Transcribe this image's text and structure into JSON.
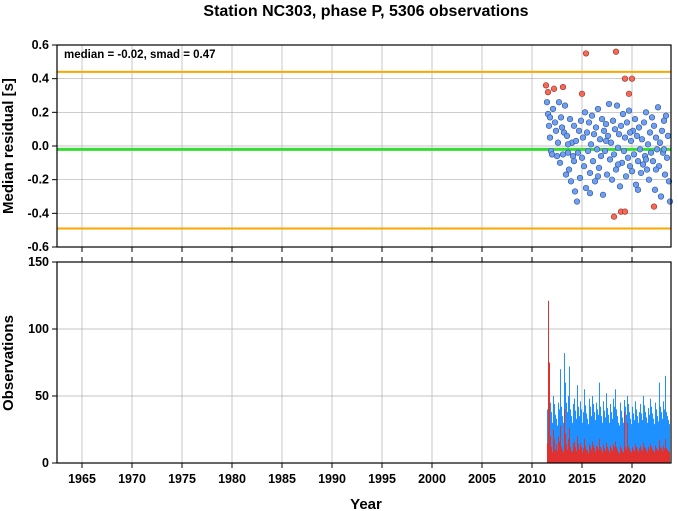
{
  "chart_data": [
    {
      "type": "scatter",
      "title": "Station NC303, phase P, 5306 observations",
      "ylabel": "Median residual [s]",
      "xlim": [
        1962.5,
        2023.9
      ],
      "ylim": [
        -0.6,
        0.6
      ],
      "yticks": [
        -0.6,
        -0.4,
        -0.2,
        0.0,
        0.2,
        0.4,
        0.6
      ],
      "ytick_labels": [
        "-0.6",
        "-0.4",
        "-0.2",
        "0.0",
        "0.2",
        "0.4",
        "0.6"
      ],
      "grid": true,
      "annotation": "median = -0.02, smad = 0.47",
      "median_line": {
        "value": -0.02,
        "color": "#33dd33"
      },
      "bounds_lines": {
        "values": [
          0.44,
          -0.49
        ],
        "color": "#ffa500"
      },
      "colors": {
        "inlier": "#6f9ff0",
        "outlier": "#f46a5a"
      },
      "outlier_points": [
        [
          2011.4,
          0.36
        ],
        [
          2011.6,
          0.32
        ],
        [
          2012.2,
          0.34
        ],
        [
          2013.1,
          0.35
        ],
        [
          2015.0,
          0.31
        ],
        [
          2015.4,
          0.55
        ],
        [
          2018.4,
          0.56
        ],
        [
          2019.3,
          0.4
        ],
        [
          2020.0,
          0.4
        ],
        [
          2019.7,
          0.31
        ],
        [
          2018.2,
          -0.42
        ],
        [
          2018.9,
          -0.39
        ],
        [
          2019.3,
          -0.39
        ],
        [
          2022.2,
          -0.36
        ]
      ],
      "inlier_points": [
        [
          2011.5,
          0.26
        ],
        [
          2011.6,
          0.19
        ],
        [
          2011.7,
          0.12
        ],
        [
          2011.8,
          0.05
        ],
        [
          2011.9,
          -0.03
        ],
        [
          2012.0,
          -0.05
        ],
        [
          2011.8,
          0.17
        ],
        [
          2012.1,
          0.22
        ],
        [
          2012.3,
          0.14
        ],
        [
          2012.4,
          0.09
        ],
        [
          2012.5,
          -0.06
        ],
        [
          2012.6,
          0.02
        ],
        [
          2012.7,
          0.26
        ],
        [
          2012.8,
          -0.1
        ],
        [
          2012.9,
          0.17
        ],
        [
          2013.0,
          0.11
        ],
        [
          2013.1,
          -0.05
        ],
        [
          2013.2,
          0.08
        ],
        [
          2013.3,
          0.24
        ],
        [
          2013.4,
          -0.17
        ],
        [
          2013.5,
          0.06
        ],
        [
          2013.6,
          -0.04
        ],
        [
          2013.7,
          -0.14
        ],
        [
          2013.8,
          0.16
        ],
        [
          2013.9,
          -0.21
        ],
        [
          2014.0,
          0.02
        ],
        [
          2014.1,
          -0.06
        ],
        [
          2014.2,
          0.12
        ],
        [
          2014.3,
          -0.27
        ],
        [
          2014.4,
          0.03
        ],
        [
          2014.5,
          -0.33
        ],
        [
          2014.6,
          -0.04
        ],
        [
          2014.7,
          0.09
        ],
        [
          2014.8,
          -0.19
        ],
        [
          2014.9,
          0.15
        ],
        [
          2015.0,
          -0.07
        ],
        [
          2015.1,
          0.05
        ],
        [
          2015.2,
          -0.12
        ],
        [
          2015.3,
          0.2
        ],
        [
          2015.4,
          -0.25
        ],
        [
          2015.5,
          0.08
        ],
        [
          2015.6,
          -0.03
        ],
        [
          2015.7,
          0.14
        ],
        [
          2015.8,
          -0.16
        ],
        [
          2015.9,
          0.01
        ],
        [
          2016.0,
          0.18
        ],
        [
          2016.1,
          -0.09
        ],
        [
          2016.2,
          0.07
        ],
        [
          2016.3,
          -0.21
        ],
        [
          2016.4,
          0.11
        ],
        [
          2016.5,
          -0.02
        ],
        [
          2016.6,
          0.22
        ],
        [
          2016.7,
          -0.13
        ],
        [
          2016.8,
          0.04
        ],
        [
          2016.9,
          -0.06
        ],
        [
          2017.0,
          0.16
        ],
        [
          2017.1,
          -0.29
        ],
        [
          2017.2,
          0.09
        ],
        [
          2017.3,
          -0.03
        ],
        [
          2017.4,
          0.13
        ],
        [
          2017.5,
          -0.17
        ],
        [
          2017.6,
          0.06
        ],
        [
          2017.7,
          0.25
        ],
        [
          2017.8,
          -0.08
        ],
        [
          2017.9,
          0.02
        ],
        [
          2018.0,
          -0.2
        ],
        [
          2018.1,
          0.15
        ],
        [
          2018.2,
          -0.05
        ],
        [
          2018.3,
          0.1
        ],
        [
          2018.4,
          -0.14
        ],
        [
          2018.5,
          0.24
        ],
        [
          2018.6,
          -0.01
        ],
        [
          2018.7,
          0.07
        ],
        [
          2018.8,
          -0.24
        ],
        [
          2018.9,
          0.12
        ],
        [
          2019.0,
          -0.1
        ],
        [
          2019.1,
          0.19
        ],
        [
          2019.2,
          -0.03
        ],
        [
          2019.3,
          0.05
        ],
        [
          2019.4,
          -0.18
        ],
        [
          2019.5,
          0.14
        ],
        [
          2019.6,
          -0.07
        ],
        [
          2019.7,
          0.21
        ],
        [
          2019.8,
          -0.12
        ],
        [
          2019.9,
          0.03
        ],
        [
          2020.0,
          -0.15
        ],
        [
          2020.1,
          0.09
        ],
        [
          2020.2,
          -0.05
        ],
        [
          2020.3,
          0.16
        ],
        [
          2020.4,
          -0.23
        ],
        [
          2020.5,
          0.06
        ],
        [
          2020.6,
          -0.09
        ],
        [
          2020.7,
          0.11
        ],
        [
          2020.8,
          -0.02
        ],
        [
          2020.9,
          -0.16
        ],
        [
          2021.0,
          0.04
        ],
        [
          2021.1,
          -0.11
        ],
        [
          2021.2,
          0.14
        ],
        [
          2021.3,
          -0.06
        ],
        [
          2021.4,
          0.2
        ],
        [
          2021.5,
          -0.14
        ],
        [
          2021.6,
          0.01
        ],
        [
          2021.7,
          -0.2
        ],
        [
          2021.8,
          0.08
        ],
        [
          2021.9,
          -0.04
        ],
        [
          2022.0,
          0.17
        ],
        [
          2022.1,
          -0.09
        ],
        [
          2022.2,
          0.12
        ],
        [
          2022.3,
          -0.26
        ],
        [
          2022.4,
          0.05
        ],
        [
          2022.5,
          -0.02
        ],
        [
          2022.6,
          0.23
        ],
        [
          2022.7,
          -0.12
        ],
        [
          2022.8,
          0.02
        ],
        [
          2022.9,
          -0.3
        ],
        [
          2023.0,
          0.09
        ],
        [
          2023.1,
          -0.04
        ],
        [
          2023.2,
          0.15
        ],
        [
          2023.3,
          -0.17
        ],
        [
          2023.4,
          0.18
        ],
        [
          2023.5,
          -0.07
        ],
        [
          2023.6,
          0.06
        ],
        [
          2023.7,
          -0.21
        ],
        [
          2023.8,
          -0.33
        ],
        [
          2013.6,
          0.01
        ],
        [
          2014.2,
          -0.09
        ],
        [
          2015.8,
          -0.28
        ],
        [
          2016.6,
          -0.18
        ],
        [
          2017.4,
          0.03
        ],
        [
          2018.6,
          -0.11
        ],
        [
          2019.8,
          0.08
        ],
        [
          2020.6,
          -0.26
        ],
        [
          2021.4,
          -0.08
        ],
        [
          2022.4,
          -0.14
        ],
        [
          2023.2,
          -0.02
        ]
      ]
    },
    {
      "type": "bar",
      "xlabel": "Year",
      "ylabel": "Observations",
      "xlim": [
        1962.5,
        2023.9
      ],
      "ylim": [
        0,
        150
      ],
      "xticks": [
        1965,
        1970,
        1975,
        1980,
        1985,
        1990,
        1995,
        2000,
        2005,
        2010,
        2015,
        2020
      ],
      "xtick_labels": [
        "1965",
        "1970",
        "1975",
        "1980",
        "1985",
        "1990",
        "1995",
        "2000",
        "2005",
        "2010",
        "2015",
        "2020"
      ],
      "yticks": [
        0,
        50,
        100,
        150
      ],
      "ytick_labels": [
        "0",
        "50",
        "100",
        "150"
      ],
      "grid": true,
      "series": [
        {
          "color": "#1e90ff",
          "x_start": 2011.5,
          "x_step": 0.1,
          "values": [
            40,
            75,
            68,
            45,
            38,
            30,
            50,
            44,
            36,
            33,
            28,
            45,
            40,
            70,
            42,
            35,
            30,
            82,
            60,
            45,
            38,
            50,
            72,
            40,
            35,
            30,
            44,
            48,
            39,
            33,
            58,
            42,
            35,
            46,
            40,
            30,
            38,
            55,
            43,
            37,
            33,
            29,
            48,
            42,
            35,
            50,
            44,
            38,
            32,
            45,
            40,
            36,
            60,
            42,
            35,
            30,
            46,
            39,
            34,
            52,
            41,
            36,
            30,
            44,
            38,
            33,
            48,
            42,
            55,
            40,
            35,
            30,
            28,
            45,
            39,
            34,
            30,
            47,
            42,
            36,
            50,
            44,
            38,
            33,
            29,
            42,
            37,
            32,
            46,
            40,
            35,
            30,
            38,
            44,
            37,
            32,
            50,
            43,
            38,
            34,
            30,
            41,
            36,
            48,
            42,
            37,
            33,
            29,
            45,
            40,
            35,
            31,
            60,
            42,
            38,
            33,
            46,
            40,
            65,
            38,
            35,
            32,
            29
          ]
        },
        {
          "color": "#e03030",
          "x_start": 2011.5,
          "x_step": 0.1,
          "values": [
            15,
            121,
            75,
            20,
            12,
            8,
            25,
            18,
            10,
            14,
            9,
            20,
            16,
            28,
            12,
            10,
            8,
            40,
            22,
            14,
            10,
            18,
            26,
            12,
            9,
            8,
            15,
            16,
            12,
            9,
            20,
            14,
            10,
            15,
            12,
            8,
            11,
            18,
            13,
            10,
            9,
            7,
            14,
            12,
            10,
            16,
            13,
            11,
            8,
            13,
            12,
            10,
            18,
            12,
            10,
            8,
            14,
            11,
            9,
            15,
            12,
            10,
            8,
            13,
            11,
            9,
            14,
            12,
            16,
            12,
            10,
            8,
            7,
            13,
            11,
            9,
            8,
            38,
            12,
            10,
            30,
            13,
            11,
            9,
            8,
            12,
            10,
            9,
            14,
            12,
            10,
            8,
            11,
            13,
            10,
            9,
            15,
            12,
            11,
            10,
            8,
            12,
            10,
            14,
            12,
            10,
            9,
            8,
            13,
            11,
            10,
            9,
            17,
            12,
            11,
            9,
            13,
            11,
            18,
            11,
            10,
            9,
            8
          ]
        }
      ]
    }
  ]
}
